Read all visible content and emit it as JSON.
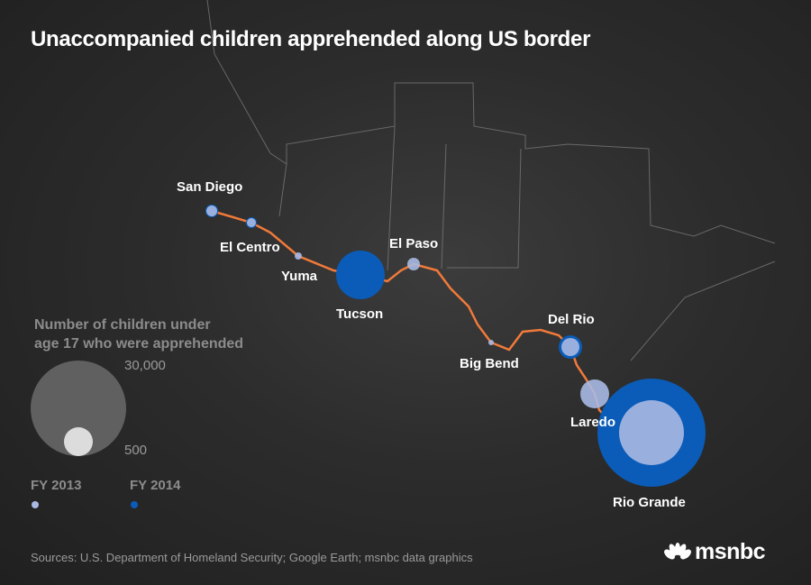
{
  "title": "Unaccompanied children apprehended along US border",
  "colors": {
    "fy2013": "#a9b9e3",
    "fy2014": "#0a5cb8",
    "border_line": "#f07a3a",
    "background": "#2a2a2a"
  },
  "sites": [
    {
      "name": "San Diego"
    },
    {
      "name": "El Centro"
    },
    {
      "name": "Yuma"
    },
    {
      "name": "Tucson"
    },
    {
      "name": "El Paso"
    },
    {
      "name": "Big Bend"
    },
    {
      "name": "Del Rio"
    },
    {
      "name": "Laredo"
    },
    {
      "name": "Rio Grande"
    }
  ],
  "legend": {
    "title_line1": "Number of children under",
    "title_line2": "age 17 who were apprehended",
    "max_label": "30,000",
    "min_label": "500",
    "series": [
      {
        "label": "FY 2013",
        "color": "#a9b9e3"
      },
      {
        "label": "FY 2014",
        "color": "#0a5cb8"
      }
    ]
  },
  "source": "Sources: U.S. Department of Homeland Security; Google Earth; msnbc data graphics",
  "logo": {
    "text": "msnbc",
    "icon": "peacock-icon"
  }
}
